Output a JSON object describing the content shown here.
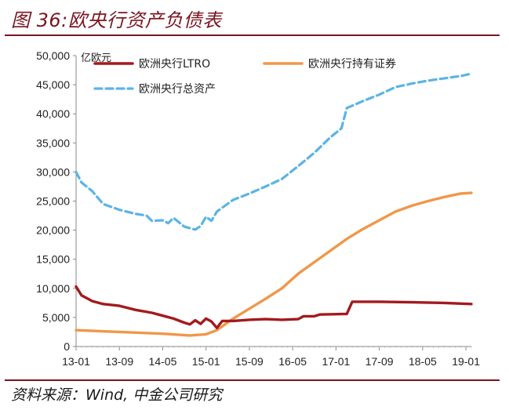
{
  "figure": {
    "title": "图 36:欧央行资产负债表",
    "source": "资料来源：Wind, 中金公司研究"
  },
  "chart_data": {
    "type": "line",
    "unit_label": "亿欧元",
    "x_tick_labels": [
      "13-01",
      "13-09",
      "14-05",
      "15-01",
      "15-09",
      "16-05",
      "17-01",
      "17-09",
      "18-05",
      "19-01"
    ],
    "x_range": [
      "2013-01",
      "2019-02"
    ],
    "ylim": [
      0,
      50000
    ],
    "y_ticks": [
      0,
      5000,
      10000,
      15000,
      20000,
      25000,
      30000,
      35000,
      40000,
      45000,
      50000
    ],
    "y_tick_labels": [
      "0",
      "5,000",
      "10,000",
      "15,000",
      "20,000",
      "25,000",
      "30,000",
      "35,000",
      "40,000",
      "45,000",
      "50,000"
    ],
    "grid": false,
    "legend_position": "top",
    "series": [
      {
        "name": "欧洲央行LTRO",
        "color": "#a31a1e",
        "style": "solid",
        "points": [
          [
            "2013-01",
            10300
          ],
          [
            "2013-02",
            8800
          ],
          [
            "2013-04",
            7800
          ],
          [
            "2013-06",
            7300
          ],
          [
            "2013-09",
            7000
          ],
          [
            "2013-12",
            6300
          ],
          [
            "2014-03",
            5800
          ],
          [
            "2014-05",
            5300
          ],
          [
            "2014-07",
            4800
          ],
          [
            "2014-09",
            4100
          ],
          [
            "2014-10",
            3800
          ],
          [
            "2014-11",
            4500
          ],
          [
            "2014-12",
            3900
          ],
          [
            "2015-01",
            4800
          ],
          [
            "2015-02",
            4300
          ],
          [
            "2015-03",
            3200
          ],
          [
            "2015-04",
            4400
          ],
          [
            "2015-06",
            4400
          ],
          [
            "2015-09",
            4600
          ],
          [
            "2015-12",
            4700
          ],
          [
            "2016-03",
            4600
          ],
          [
            "2016-06",
            4700
          ],
          [
            "2016-07",
            5200
          ],
          [
            "2016-09",
            5200
          ],
          [
            "2016-10",
            5500
          ],
          [
            "2017-03",
            5600
          ],
          [
            "2017-04",
            7700
          ],
          [
            "2017-09",
            7700
          ],
          [
            "2018-03",
            7600
          ],
          [
            "2018-09",
            7500
          ],
          [
            "2019-02",
            7300
          ]
        ]
      },
      {
        "name": "欧洲央行持有证券",
        "color": "#f0974a",
        "style": "solid",
        "points": [
          [
            "2013-01",
            2800
          ],
          [
            "2013-09",
            2500
          ],
          [
            "2014-05",
            2200
          ],
          [
            "2014-10",
            1900
          ],
          [
            "2015-01",
            2100
          ],
          [
            "2015-03",
            2800
          ],
          [
            "2015-06",
            4800
          ],
          [
            "2015-09",
            6500
          ],
          [
            "2015-12",
            8200
          ],
          [
            "2016-03",
            10000
          ],
          [
            "2016-06",
            12500
          ],
          [
            "2016-09",
            14500
          ],
          [
            "2016-12",
            16500
          ],
          [
            "2017-03",
            18500
          ],
          [
            "2017-06",
            20200
          ],
          [
            "2017-09",
            21700
          ],
          [
            "2017-12",
            23200
          ],
          [
            "2018-03",
            24200
          ],
          [
            "2018-06",
            25000
          ],
          [
            "2018-09",
            25700
          ],
          [
            "2018-12",
            26300
          ],
          [
            "2019-02",
            26400
          ]
        ]
      },
      {
        "name": "欧洲央行总资产",
        "color": "#5bb4e5",
        "style": "dashed",
        "points": [
          [
            "2013-01",
            30000
          ],
          [
            "2013-02",
            28200
          ],
          [
            "2013-04",
            26700
          ],
          [
            "2013-06",
            24500
          ],
          [
            "2013-09",
            23500
          ],
          [
            "2013-12",
            22800
          ],
          [
            "2014-02",
            22500
          ],
          [
            "2014-03",
            21600
          ],
          [
            "2014-05",
            21700
          ],
          [
            "2014-06",
            21200
          ],
          [
            "2014-07",
            22100
          ],
          [
            "2014-09",
            20600
          ],
          [
            "2014-11",
            20100
          ],
          [
            "2014-12",
            20700
          ],
          [
            "2015-01",
            22300
          ],
          [
            "2015-02",
            21600
          ],
          [
            "2015-03",
            23200
          ],
          [
            "2015-06",
            25200
          ],
          [
            "2015-09",
            26300
          ],
          [
            "2015-12",
            27500
          ],
          [
            "2016-03",
            28800
          ],
          [
            "2016-06",
            31000
          ],
          [
            "2016-09",
            33300
          ],
          [
            "2016-12",
            36000
          ],
          [
            "2017-02",
            37500
          ],
          [
            "2017-03",
            41000
          ],
          [
            "2017-06",
            42200
          ],
          [
            "2017-09",
            43300
          ],
          [
            "2017-12",
            44600
          ],
          [
            "2018-03",
            45200
          ],
          [
            "2018-06",
            45700
          ],
          [
            "2018-09",
            46100
          ],
          [
            "2018-12",
            46500
          ],
          [
            "2019-02",
            46900
          ]
        ]
      }
    ]
  }
}
